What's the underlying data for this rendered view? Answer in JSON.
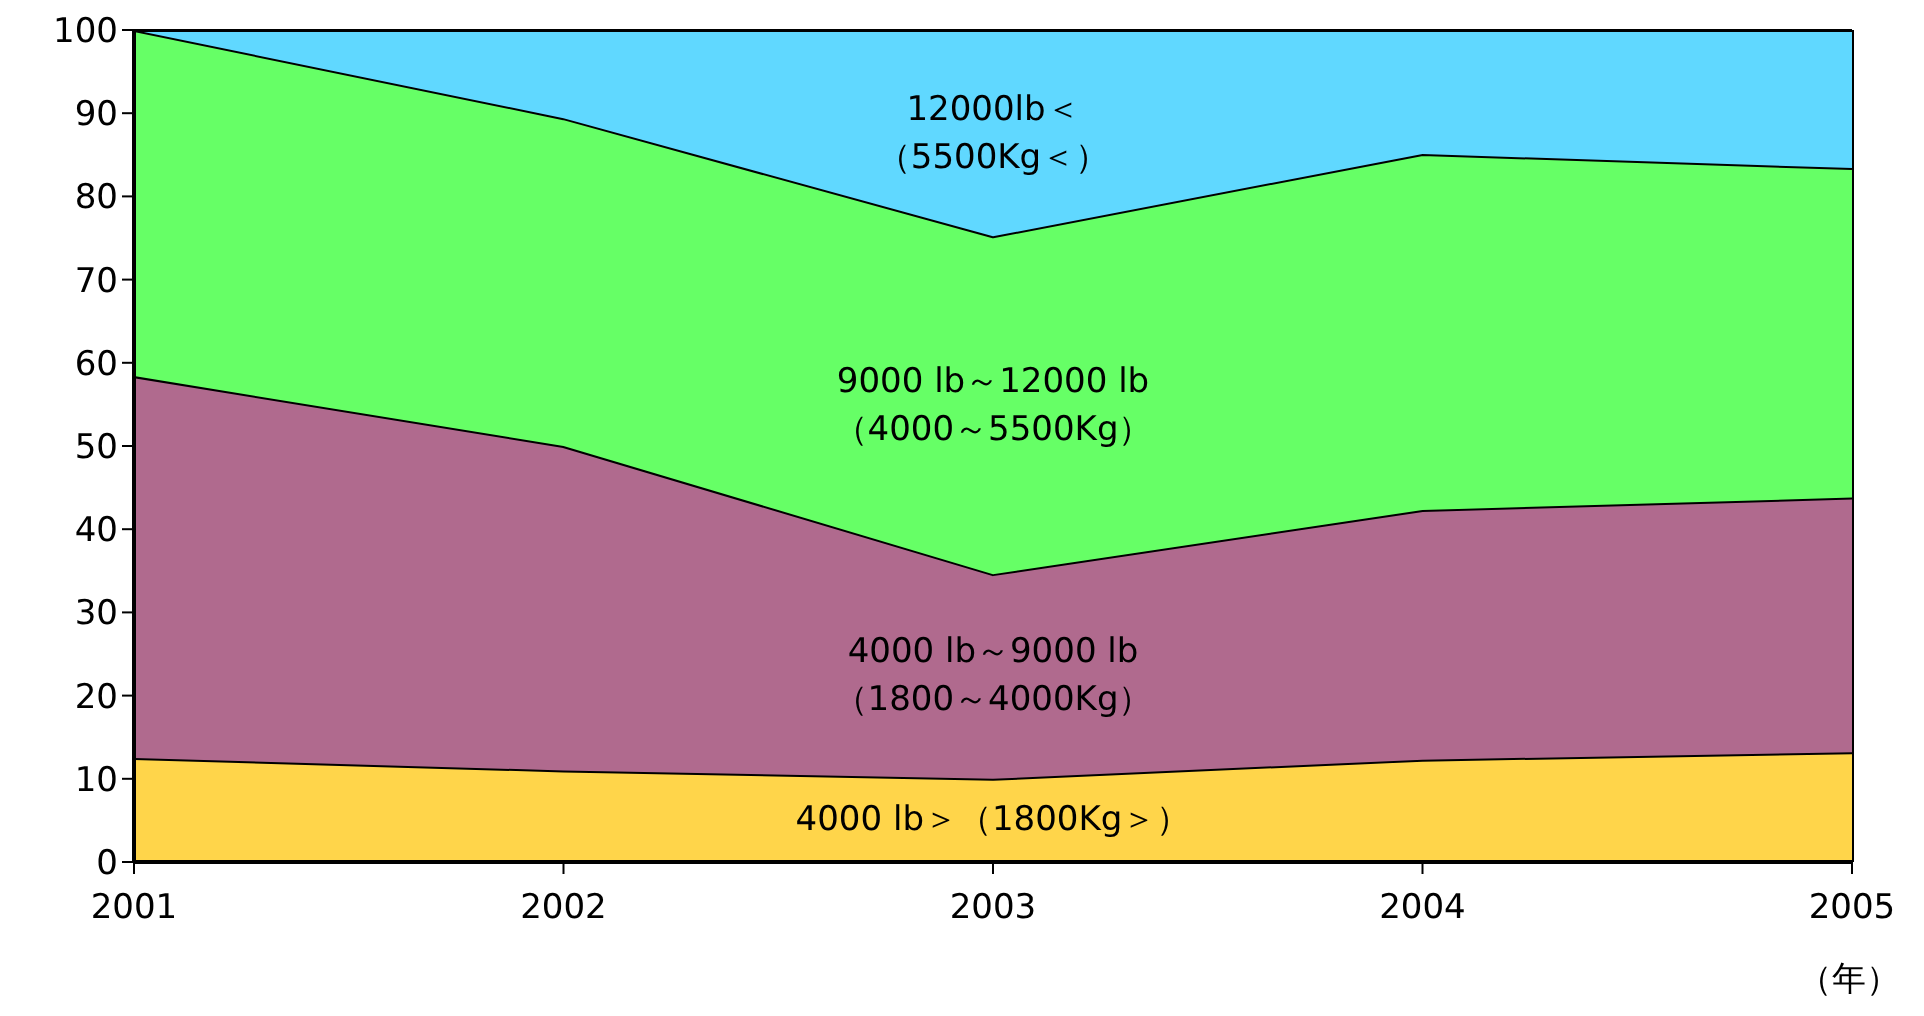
{
  "chart_data": {
    "type": "area",
    "stacked": true,
    "xlabel": "（年）",
    "x": [
      2001,
      2002,
      2003,
      2004,
      2005
    ],
    "xlim": [
      2001,
      2005
    ],
    "xticks": [
      2001,
      2002,
      2003,
      2004,
      2005
    ],
    "ylim": [
      0,
      100
    ],
    "yticks": [
      0,
      10,
      20,
      30,
      40,
      50,
      60,
      70,
      80,
      90,
      100
    ],
    "legend": false,
    "series": [
      {
        "name": "4000 lb＞（1800Kg＞）",
        "color": "#ffd54a",
        "values": [
          12.5,
          11,
          10,
          12.3,
          13.2
        ]
      },
      {
        "name": "4000 lb～9000 lb（1800～4000Kg）",
        "color": "#b06a8e",
        "values": [
          45.9,
          39,
          24.6,
          30,
          30.6
        ]
      },
      {
        "name": "9000 lb～12000 lb（4000～5500Kg）",
        "color": "#66ff66",
        "values": [
          41.6,
          39.4,
          40.6,
          42.8,
          39.6
        ]
      },
      {
        "name": "12000lb＜（5500Kg＜）",
        "color": "#60d8ff",
        "values": [
          0,
          10.6,
          24.8,
          14.9,
          16.6
        ]
      }
    ]
  }
}
